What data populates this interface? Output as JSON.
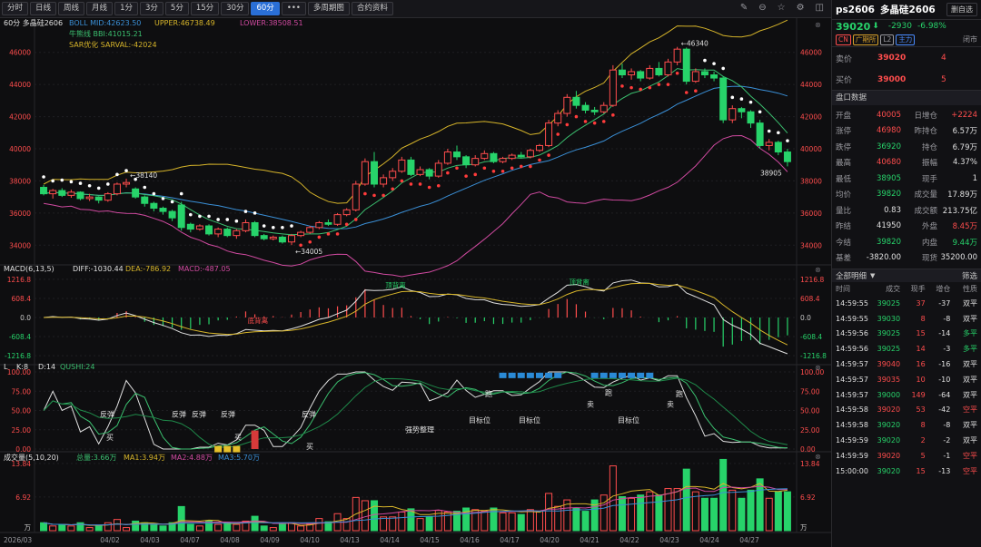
{
  "toolbar": {
    "buttons": [
      "分时",
      "日线",
      "周线",
      "月线",
      "1分",
      "3分",
      "5分",
      "15分",
      "30分",
      "60分",
      "•••",
      "多周期图",
      "合约资料"
    ],
    "active": "60分"
  },
  "main_pane": {
    "title": "60分 多晶硅2606",
    "boll": "BOLL MID:42623.50",
    "upper": "UPPER:46738.49",
    "lower": "LOWER:38508.51",
    "bbi": "牛熊线 BBI:41015.21",
    "sar": "SAR优化 SARVAL:-42024",
    "y_ticks_left": [
      "46000",
      "44000",
      "42000",
      "40000",
      "38000",
      "36000",
      "34000"
    ],
    "y_ticks_right": [
      "46000",
      "44000",
      "42000",
      "40000",
      "38000",
      "36000",
      "34000"
    ],
    "annotations": [
      "38140",
      "34005",
      "46340",
      "38905"
    ]
  },
  "macd_pane": {
    "title": "MACD(6,13,5)",
    "diff": "DIFF:-1030.44",
    "dea": "DEA:-786.92",
    "macd": "MACD:-487.05",
    "y_ticks": [
      "1216.8",
      "608.4",
      "0.0",
      "-608.4",
      "-1216.8"
    ],
    "labels": [
      "底背离",
      "顶背离",
      "顶背离"
    ]
  },
  "kd_pane": {
    "title": "L",
    "k": "K:8",
    "d": "D:14",
    "qushi": "QUSHI:24",
    "y_ticks": [
      "100.00",
      "75.00",
      "50.00",
      "25.00",
      "0.00"
    ],
    "labels": [
      "反弹",
      "反弹",
      "反弹",
      "反弹",
      "反弹",
      "买",
      "买",
      "买",
      "强势整理",
      "目标位",
      "目标位",
      "目标位",
      "跑",
      "跑",
      "跑",
      "卖",
      "卖"
    ]
  },
  "vol_pane": {
    "title": "成交量(5,10,20)",
    "total": "总量:3.66万",
    "ma1": "MA1:3.94万",
    "ma2": "MA2:4.88万",
    "ma3": "MA3:5.70万",
    "y_ticks": [
      "13.84",
      "6.92",
      "万"
    ]
  },
  "x_axis": [
    "2026/03",
    "04/02",
    "04/03",
    "04/07",
    "04/08",
    "04/09",
    "04/10",
    "04/13",
    "04/14",
    "04/15",
    "04/16",
    "04/17",
    "04/20",
    "04/21",
    "04/22",
    "04/23",
    "04/24",
    "04/27"
  ],
  "chart_data": {
    "type": "candlestick",
    "title": "60分 多晶硅2606",
    "candles": [
      [
        37600,
        37200,
        37750,
        37100
      ],
      [
        37200,
        37400,
        37500,
        36900
      ],
      [
        37400,
        37100,
        37550,
        37000
      ],
      [
        37100,
        37300,
        37450,
        36950
      ],
      [
        37300,
        36900,
        37350,
        36800
      ],
      [
        36900,
        37000,
        37200,
        36750
      ],
      [
        37000,
        36800,
        37050,
        36600
      ],
      [
        36800,
        37200,
        37300,
        36700
      ],
      [
        37200,
        37800,
        37900,
        37100
      ],
      [
        37800,
        37900,
        38140,
        37600
      ],
      [
        37500,
        37000,
        37600,
        36900
      ],
      [
        37000,
        36600,
        37100,
        36400
      ],
      [
        36600,
        36300,
        36700,
        36100
      ],
      [
        36300,
        36100,
        36400,
        35900
      ],
      [
        36100,
        35700,
        36200,
        35500
      ],
      [
        36500,
        35100,
        36700,
        34900
      ],
      [
        35300,
        35000,
        35400,
        34800
      ],
      [
        35000,
        35200,
        35300,
        34900
      ],
      [
        35200,
        34700,
        35300,
        34600
      ],
      [
        34700,
        35000,
        35100,
        34500
      ],
      [
        35000,
        34600,
        35100,
        34500
      ],
      [
        34600,
        34900,
        35000,
        34400
      ],
      [
        34900,
        35400,
        35600,
        34800
      ],
      [
        35400,
        34600,
        35500,
        34500
      ],
      [
        34600,
        34400,
        34700,
        34300
      ],
      [
        34400,
        34500,
        34600,
        34300
      ],
      [
        34500,
        34200,
        34600,
        34100
      ],
      [
        34200,
        34600,
        34700,
        34005
      ],
      [
        34600,
        34800,
        34900,
        34500
      ],
      [
        34800,
        35100,
        35200,
        34700
      ],
      [
        35100,
        35400,
        35500,
        35000
      ],
      [
        35400,
        35300,
        35600,
        35200
      ],
      [
        35300,
        35900,
        36000,
        35200
      ],
      [
        35900,
        36200,
        36300,
        35800
      ],
      [
        36200,
        37800,
        38000,
        36100
      ],
      [
        37800,
        39200,
        39400,
        37700
      ],
      [
        39200,
        37800,
        39800,
        37600
      ],
      [
        37800,
        38200,
        38400,
        37600
      ],
      [
        38200,
        38600,
        38800,
        38000
      ],
      [
        38600,
        39300,
        39500,
        38500
      ],
      [
        39300,
        38400,
        39500,
        38300
      ],
      [
        38400,
        38700,
        38900,
        38300
      ],
      [
        38700,
        38300,
        38800,
        38100
      ],
      [
        38300,
        39100,
        39300,
        38200
      ],
      [
        39100,
        39800,
        40000,
        39000
      ],
      [
        39800,
        39500,
        40200,
        39300
      ],
      [
        39500,
        39000,
        39600,
        38800
      ],
      [
        39000,
        39400,
        39600,
        38900
      ],
      [
        39400,
        39700,
        39900,
        39300
      ],
      [
        39700,
        39200,
        39800,
        39100
      ],
      [
        39200,
        39400,
        39500,
        39100
      ],
      [
        39400,
        39600,
        39700,
        39300
      ],
      [
        39600,
        39500,
        39800,
        39400
      ],
      [
        39500,
        39900,
        40000,
        39400
      ],
      [
        39900,
        40200,
        40300,
        39800
      ],
      [
        40200,
        41600,
        41800,
        40100
      ],
      [
        41600,
        42200,
        42400,
        41400
      ],
      [
        42200,
        43200,
        43400,
        42000
      ],
      [
        43200,
        42700,
        43600,
        42500
      ],
      [
        42700,
        42400,
        42900,
        42200
      ],
      [
        42400,
        42300,
        42600,
        42100
      ],
      [
        42300,
        42700,
        42900,
        42200
      ],
      [
        42700,
        44900,
        45200,
        42600
      ],
      [
        44900,
        44600,
        45300,
        44400
      ],
      [
        44600,
        44800,
        45000,
        44300
      ],
      [
        44800,
        44400,
        44900,
        44200
      ],
      [
        44400,
        45000,
        45200,
        44300
      ],
      [
        45000,
        44600,
        45400,
        44500
      ],
      [
        44600,
        45400,
        45600,
        44500
      ],
      [
        45400,
        46200,
        46340,
        45200
      ],
      [
        46200,
        44200,
        46300,
        44000
      ],
      [
        44200,
        44800,
        45000,
        44100
      ],
      [
        44800,
        44600,
        45000,
        44400
      ],
      [
        44600,
        44400,
        44800,
        44200
      ],
      [
        44400,
        41800,
        44500,
        41600
      ],
      [
        41800,
        42500,
        42700,
        41600
      ],
      [
        42500,
        42300,
        42600,
        41900
      ],
      [
        42300,
        41600,
        42400,
        41300
      ],
      [
        41600,
        40200,
        41800,
        40000
      ],
      [
        40200,
        40400,
        40600,
        39900
      ],
      [
        40400,
        39800,
        40500,
        39600
      ],
      [
        39800,
        39200,
        40000,
        38905
      ]
    ]
  },
  "right": {
    "code": "ps2606",
    "name": "多晶硅2606",
    "more": "删自选",
    "price": "39020",
    "arrow": "⬇",
    "change": "-2930",
    "pct": "-6.98%",
    "tags": [
      "CN",
      "广期所",
      "L2",
      "主力"
    ],
    "status": "闭市",
    "ask_label": "卖价",
    "ask": "39020",
    "ask_vol": "4",
    "bid_label": "买价",
    "bid": "39000",
    "bid_vol": "5",
    "section": "盘口数据",
    "stats": [
      [
        "开盘",
        "40005",
        "up",
        "日增仓",
        "+2224",
        "up"
      ],
      [
        "涨停",
        "46980",
        "up",
        "昨持仓",
        "6.57万",
        "wh"
      ],
      [
        "跌停",
        "36920",
        "dn",
        "持仓",
        "6.79万",
        "wh"
      ],
      [
        "最高",
        "40680",
        "up",
        "振幅",
        "4.37%",
        "wh"
      ],
      [
        "最低",
        "38905",
        "dn",
        "现手",
        "1",
        "wh"
      ],
      [
        "均价",
        "39820",
        "dn",
        "成交量",
        "17.89万",
        "wh"
      ],
      [
        "量比",
        "0.83",
        "wh",
        "成交额",
        "213.75亿",
        "wh"
      ],
      [
        "昨结",
        "41950",
        "wh",
        "外盘",
        "8.45万",
        "up"
      ],
      [
        "今结",
        "39820",
        "dn",
        "内盘",
        "9.44万",
        "dn"
      ],
      [
        "基差",
        "-3820.00",
        "wh",
        "现货",
        "35200.00",
        "wh"
      ]
    ],
    "detail_title": "全部明细",
    "filter": "筛选",
    "cols": [
      "时间",
      "成交",
      "现手",
      "增仓",
      "性质"
    ],
    "trades": [
      [
        "14:59:55",
        "39025",
        "37",
        "-37",
        "双平",
        "dn"
      ],
      [
        "14:59:55",
        "39030",
        "8",
        "-8",
        "双平",
        "dn"
      ],
      [
        "14:59:56",
        "39025",
        "15",
        "-14",
        "多平",
        "dn"
      ],
      [
        "14:59:56",
        "39025",
        "14",
        "-3",
        "多平",
        "dn"
      ],
      [
        "14:59:57",
        "39040",
        "16",
        "-16",
        "双平",
        "up"
      ],
      [
        "14:59:57",
        "39035",
        "10",
        "-10",
        "双平",
        "up"
      ],
      [
        "14:59:57",
        "39000",
        "149",
        "-64",
        "双平",
        "dn"
      ],
      [
        "14:59:58",
        "39020",
        "53",
        "-42",
        "空平",
        "up"
      ],
      [
        "14:59:58",
        "39020",
        "8",
        "-8",
        "双平",
        "dn"
      ],
      [
        "14:59:59",
        "39020",
        "2",
        "-2",
        "双平",
        "dn"
      ],
      [
        "14:59:59",
        "39020",
        "5",
        "-1",
        "空平",
        "up"
      ],
      [
        "15:00:00",
        "39020",
        "15",
        "-13",
        "空平",
        "dn"
      ]
    ]
  }
}
